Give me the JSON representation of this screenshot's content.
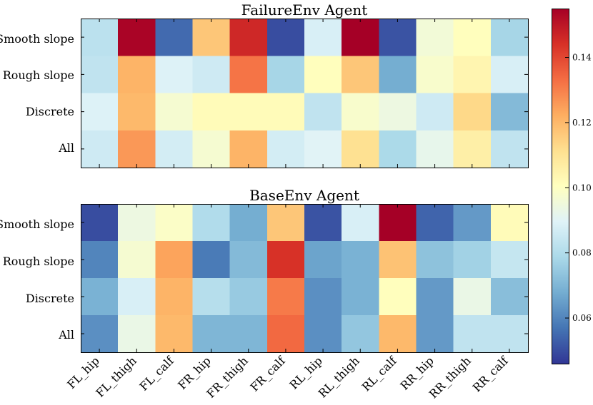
{
  "chart_data": [
    {
      "type": "heatmap",
      "title": "FailureEnv Agent",
      "rows": [
        "Smooth slope",
        "Rough slope",
        "Discrete",
        "All"
      ],
      "columns": [
        "FL_hip",
        "FL_thigh",
        "FL_calf",
        "FR_hip",
        "FR_thigh",
        "FR_calf",
        "RL_hip",
        "RL_thigh",
        "RL_calf",
        "RR_hip",
        "RR_thigh",
        "RR_calf"
      ],
      "values": [
        [
          0.082,
          0.154,
          0.055,
          0.117,
          0.146,
          0.05,
          0.088,
          0.155,
          0.051,
          0.096,
          0.101,
          0.078
        ],
        [
          0.083,
          0.121,
          0.089,
          0.086,
          0.132,
          0.078,
          0.101,
          0.117,
          0.068,
          0.098,
          0.104,
          0.088
        ],
        [
          0.089,
          0.12,
          0.097,
          0.102,
          0.102,
          0.102,
          0.083,
          0.098,
          0.094,
          0.086,
          0.113,
          0.071
        ],
        [
          0.086,
          0.126,
          0.087,
          0.097,
          0.121,
          0.087,
          0.09,
          0.111,
          0.079,
          0.092,
          0.106,
          0.083
        ]
      ]
    },
    {
      "type": "heatmap",
      "title": "BaseEnv Agent",
      "rows": [
        "Smooth slope",
        "Rough slope",
        "Discrete",
        "All"
      ],
      "columns": [
        "FL_hip",
        "FL_thigh",
        "FL_calf",
        "FR_hip",
        "FR_thigh",
        "FR_calf",
        "RL_hip",
        "RL_thigh",
        "RL_calf",
        "RR_hip",
        "RR_thigh",
        "RR_calf"
      ],
      "values": [
        [
          0.05,
          0.094,
          0.099,
          0.08,
          0.068,
          0.117,
          0.051,
          0.088,
          0.155,
          0.054,
          0.064,
          0.102
        ],
        [
          0.06,
          0.097,
          0.124,
          0.058,
          0.071,
          0.144,
          0.066,
          0.069,
          0.118,
          0.073,
          0.077,
          0.084
        ],
        [
          0.069,
          0.088,
          0.121,
          0.081,
          0.075,
          0.131,
          0.062,
          0.069,
          0.101,
          0.064,
          0.093,
          0.072
        ],
        [
          0.062,
          0.093,
          0.12,
          0.07,
          0.07,
          0.134,
          0.062,
          0.074,
          0.12,
          0.064,
          0.083,
          0.083
        ]
      ]
    }
  ],
  "colorbar": {
    "colormap": "RdYlBu_r",
    "vmin": 0.046,
    "vmax": 0.155,
    "ticks": [
      0.06,
      0.08,
      0.1,
      0.12,
      0.14
    ],
    "tick_labels": [
      "0.06",
      "0.08",
      "0.10",
      "0.12",
      "0.14"
    ]
  }
}
